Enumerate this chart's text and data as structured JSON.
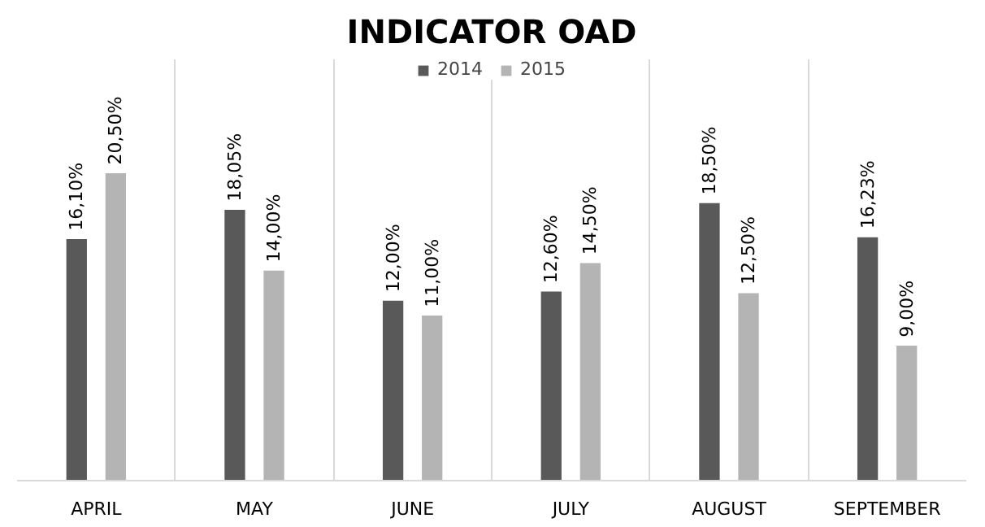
{
  "chart_data": {
    "type": "bar",
    "title": "INDICATOR OAD",
    "categories": [
      "APRIL",
      "MAY",
      "JUNE",
      "JULY",
      "AUGUST",
      "SEPTEMBER"
    ],
    "series": [
      {
        "name": "2014",
        "color": "#595959",
        "values": [
          16.1,
          18.05,
          12.0,
          12.6,
          18.5,
          16.23
        ],
        "value_labels": [
          "16,10%",
          "18,05%",
          "12,00%",
          "12,60%",
          "18,50%",
          "16,23%"
        ]
      },
      {
        "name": "2015",
        "color": "#b4b4b4",
        "values": [
          20.5,
          14.0,
          11.0,
          14.5,
          12.5,
          9.0
        ],
        "value_labels": [
          "20,50%",
          "14,00%",
          "11,00%",
          "14,50%",
          "12,50%",
          "9,00%"
        ]
      }
    ],
    "grid": "x",
    "legend": "top"
  }
}
